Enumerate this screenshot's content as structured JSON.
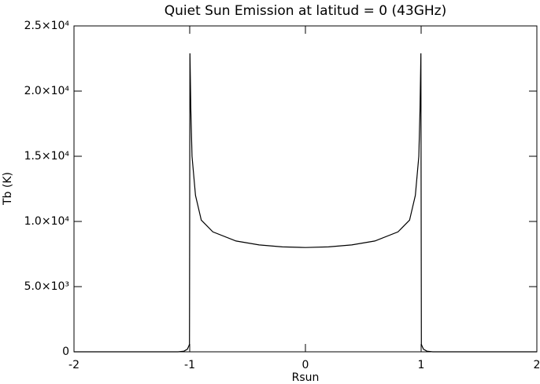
{
  "chart_data": {
    "type": "line",
    "title": "Quiet Sun Emission at latitud = 0 (43GHz)",
    "x_label": "Rsun",
    "y_label": "Tb (K)",
    "x": [
      -2,
      -1.5,
      -1.1,
      -1.05,
      -1.02,
      -1.005,
      -1.002,
      -0.998,
      -0.99,
      -0.98,
      -0.95,
      -0.9,
      -0.8,
      -0.6,
      -0.4,
      -0.2,
      0,
      0.2,
      0.4,
      0.6,
      0.8,
      0.9,
      0.95,
      0.98,
      0.99,
      0.998,
      1.002,
      1.005,
      1.02,
      1.05,
      1.1,
      1.5,
      2
    ],
    "series": [
      {
        "name": "Tb",
        "color": "#000000",
        "values": [
          0,
          0,
          0,
          50,
          200,
          500,
          600,
          22900,
          18500,
          15000,
          12000,
          10100,
          9200,
          8500,
          8200,
          8050,
          8000,
          8050,
          8200,
          8500,
          9200,
          10100,
          12000,
          15000,
          18500,
          22900,
          600,
          500,
          200,
          50,
          0,
          0,
          0
        ]
      }
    ],
    "xlim": [
      -2,
      2
    ],
    "xticks": [
      -2,
      -1,
      0,
      1,
      2
    ],
    "ylim": [
      0,
      25000
    ],
    "yticks": [
      0,
      {
        "value": 5000,
        "label": "5.0×10³"
      },
      {
        "value": 10000,
        "label": "1.0×10⁴"
      },
      {
        "value": 15000,
        "label": "1.5×10⁴"
      },
      {
        "value": 20000,
        "label": "2.0×10⁴"
      },
      {
        "value": 25000,
        "label": "2.5×10⁴"
      }
    ],
    "grid": false
  }
}
